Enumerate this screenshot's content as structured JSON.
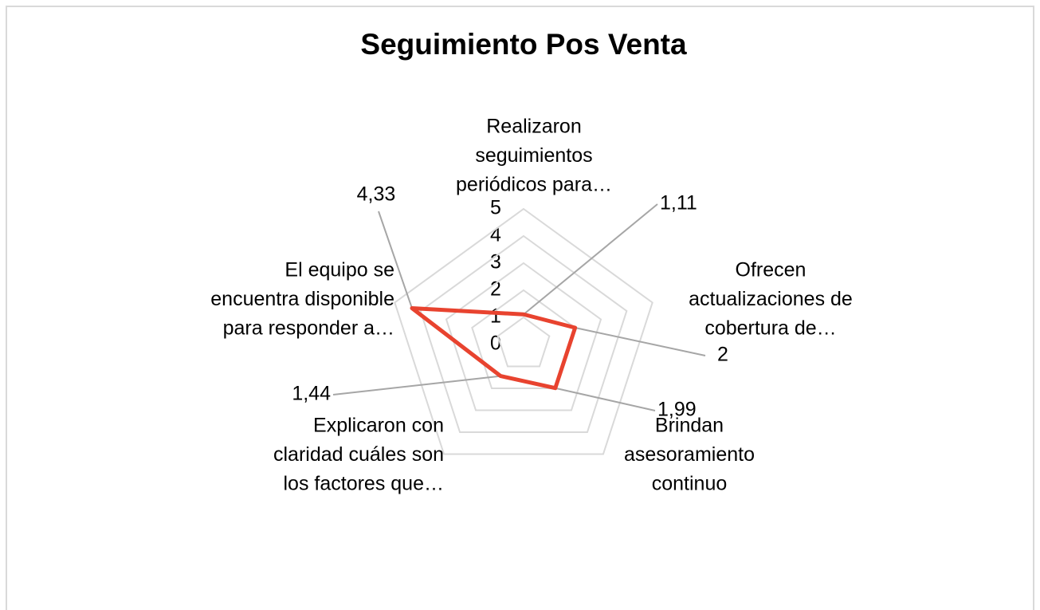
{
  "chart_data": {
    "type": "radar",
    "title": "Seguimiento Pos Venta",
    "categories": [
      [
        "Realizaron",
        "seguimientos",
        "periódicos para…"
      ],
      [
        "Ofrecen",
        "actualizaciones de",
        "cobertura de…"
      ],
      [
        "Brindan",
        "asesoramiento",
        "continuo"
      ],
      [
        "Explicaron con",
        "claridad cuáles son",
        "los factores que…"
      ],
      [
        "El equipo se",
        "encuentra disponible",
        "para responder a…"
      ]
    ],
    "series": [
      {
        "color": "#e8432f",
        "values": [
          1.11,
          2,
          1.99,
          1.44,
          4.33
        ],
        "value_labels": [
          "1,11",
          "2",
          "1,99",
          "1,44",
          "4,33"
        ]
      }
    ],
    "ylim": [
      0,
      5
    ],
    "yticks": [
      0,
      1,
      2,
      3,
      4,
      5
    ],
    "grid": true
  }
}
